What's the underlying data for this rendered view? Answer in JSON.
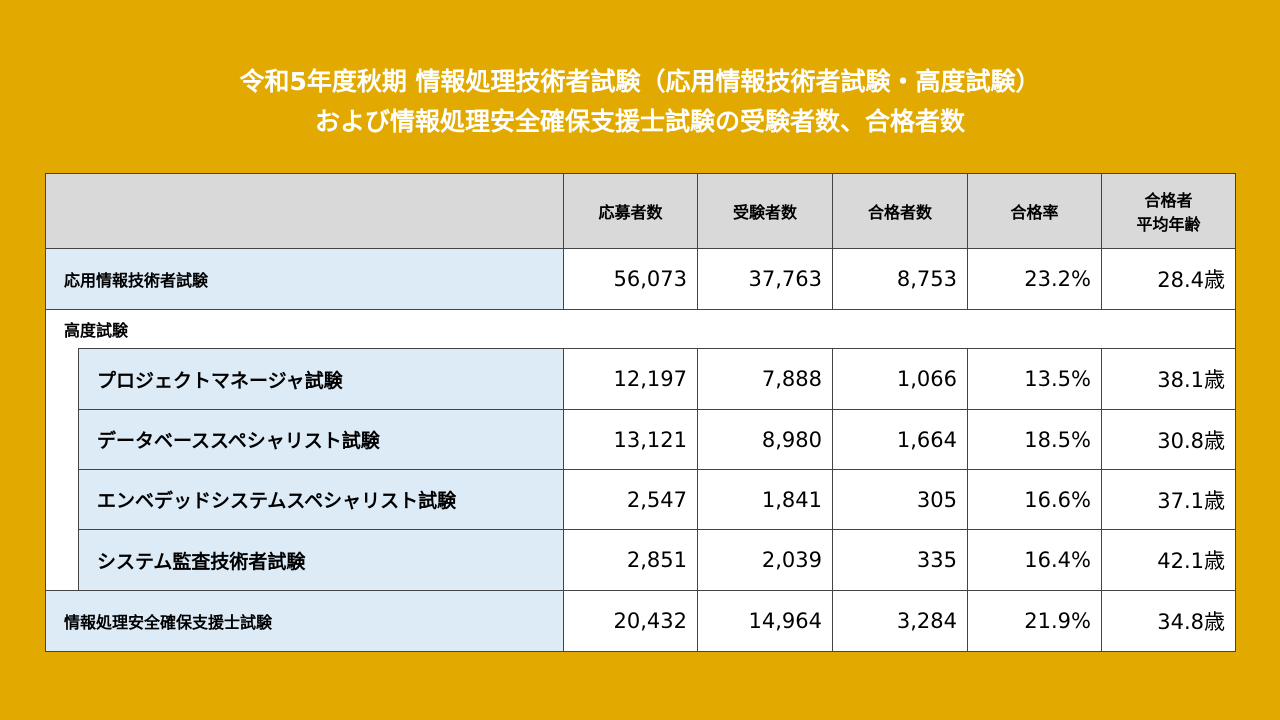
{
  "title": [
    "令和5年度秋期 情報処理技術者試験（応用情報技術者試験・高度試験）",
    "および情報処理安全確保支援士試験の受験者数、合格者数"
  ],
  "table": {
    "columns": [
      "応募者数",
      "受験者数",
      "合格者数",
      "合格率",
      [
        "合格者",
        "平均年齢"
      ]
    ],
    "rows": [
      {
        "label": "応用情報技術者試験",
        "cells": [
          "56,073",
          "37,763",
          "8,753",
          "23.2%",
          "28.4歳"
        ]
      }
    ],
    "group": {
      "label": "高度試験",
      "rows": [
        {
          "label": "プロジェクトマネージャ試験",
          "cells": [
            "12,197",
            "7,888",
            "1,066",
            "13.5%",
            "38.1歳"
          ]
        },
        {
          "label": "データベーススペシャリスト試験",
          "cells": [
            "13,121",
            "8,980",
            "1,664",
            "18.5%",
            "30.8歳"
          ]
        },
        {
          "label": "エンベデッドシステムスペシャリスト試験",
          "cells": [
            "2,547",
            "1,841",
            "305",
            "16.6%",
            "37.1歳"
          ]
        },
        {
          "label": "システム監査技術者試験",
          "cells": [
            "2,851",
            "2,039",
            "335",
            "16.4%",
            "42.1歳"
          ]
        }
      ]
    },
    "last_row": {
      "label": "情報処理安全確保支援士試験",
      "cells": [
        "20,432",
        "14,964",
        "3,284",
        "21.9%",
        "34.8歳"
      ]
    }
  }
}
